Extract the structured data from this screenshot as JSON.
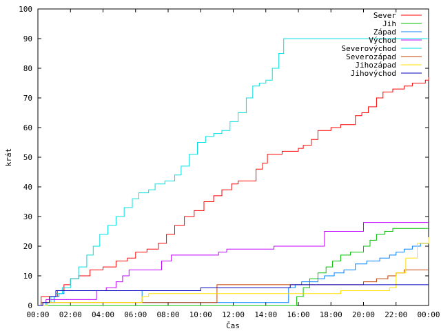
{
  "chart_data": {
    "type": "line",
    "xlabel": "Čas",
    "ylabel": "krát",
    "xlim": [
      0,
      24
    ],
    "ylim": [
      0,
      100
    ],
    "grid": false,
    "legend_position": "top-right",
    "x_tick_labels": [
      "00:00",
      "02:00",
      "04:00",
      "06:00",
      "08:00",
      "10:00",
      "12:00",
      "14:00",
      "16:00",
      "18:00",
      "20:00",
      "22:00",
      "00:00"
    ],
    "y_tick_labels": [
      "0",
      "10",
      "20",
      "30",
      "40",
      "50",
      "60",
      "70",
      "80",
      "90",
      "100"
    ],
    "series": [
      {
        "name": "Sever",
        "color": "#ff0000",
        "points": [
          [
            0,
            0
          ],
          [
            0.2,
            3
          ],
          [
            1.2,
            5
          ],
          [
            1.6,
            7
          ],
          [
            2,
            9
          ],
          [
            2.5,
            10
          ],
          [
            3.2,
            12
          ],
          [
            4,
            13
          ],
          [
            4.8,
            15
          ],
          [
            5.5,
            16
          ],
          [
            6,
            18
          ],
          [
            6.7,
            19
          ],
          [
            7.4,
            21
          ],
          [
            7.9,
            24
          ],
          [
            8.4,
            27
          ],
          [
            9,
            30
          ],
          [
            9.6,
            32
          ],
          [
            10.2,
            35
          ],
          [
            10.8,
            37
          ],
          [
            11.3,
            39
          ],
          [
            11.9,
            41
          ],
          [
            12.3,
            42
          ],
          [
            13,
            42
          ],
          [
            13.4,
            46
          ],
          [
            13.8,
            48
          ],
          [
            14.1,
            51
          ],
          [
            14.8,
            51
          ],
          [
            15,
            52
          ],
          [
            16,
            53
          ],
          [
            16.3,
            54
          ],
          [
            16.8,
            56
          ],
          [
            17.2,
            59
          ],
          [
            18,
            60
          ],
          [
            18.6,
            61
          ],
          [
            19.5,
            64
          ],
          [
            19.9,
            65
          ],
          [
            20.3,
            67
          ],
          [
            20.8,
            70
          ],
          [
            21.2,
            72
          ],
          [
            21.8,
            73
          ],
          [
            22.5,
            74
          ],
          [
            23,
            75
          ],
          [
            23.5,
            75
          ],
          [
            23.8,
            76
          ],
          [
            24,
            77
          ]
        ]
      },
      {
        "name": "Jih",
        "color": "#00c000",
        "points": [
          [
            0,
            0
          ],
          [
            15.5,
            0
          ],
          [
            15.9,
            3
          ],
          [
            16.3,
            6
          ],
          [
            16.7,
            9
          ],
          [
            17.2,
            11
          ],
          [
            17.7,
            13
          ],
          [
            18.1,
            15
          ],
          [
            18.6,
            17
          ],
          [
            19.2,
            18
          ],
          [
            20,
            20
          ],
          [
            20.4,
            22
          ],
          [
            20.8,
            24
          ],
          [
            21.3,
            25
          ],
          [
            21.8,
            26
          ],
          [
            24,
            26
          ]
        ]
      },
      {
        "name": "Západ",
        "color": "#0080ff",
        "points": [
          [
            0,
            0
          ],
          [
            0.4,
            0
          ],
          [
            0.6,
            1
          ],
          [
            1,
            3
          ],
          [
            1.3,
            4
          ],
          [
            1.6,
            5
          ],
          [
            6.3,
            5
          ],
          [
            6.4,
            1
          ],
          [
            15.1,
            1
          ],
          [
            15.4,
            6
          ],
          [
            15.8,
            7
          ],
          [
            16.2,
            8
          ],
          [
            17.2,
            9
          ],
          [
            17.6,
            10
          ],
          [
            18.2,
            11
          ],
          [
            18.8,
            12
          ],
          [
            19.5,
            14
          ],
          [
            20.2,
            15
          ],
          [
            21,
            16
          ],
          [
            21.6,
            17
          ],
          [
            22,
            18
          ],
          [
            22.5,
            19
          ],
          [
            23,
            20
          ],
          [
            23.5,
            21
          ],
          [
            24,
            21
          ]
        ]
      },
      {
        "name": "Východ",
        "color": "#c000ff",
        "points": [
          [
            0,
            0
          ],
          [
            0.3,
            0
          ],
          [
            0.5,
            2
          ],
          [
            3.2,
            2
          ],
          [
            3.6,
            5
          ],
          [
            4.2,
            6
          ],
          [
            4.8,
            8
          ],
          [
            5.2,
            10
          ],
          [
            5.6,
            12
          ],
          [
            7.2,
            12
          ],
          [
            7.6,
            15
          ],
          [
            8.2,
            17
          ],
          [
            10.8,
            17
          ],
          [
            11.1,
            18
          ],
          [
            11.6,
            19
          ],
          [
            14,
            19
          ],
          [
            14.5,
            20
          ],
          [
            17.2,
            20
          ],
          [
            17.6,
            25
          ],
          [
            19.6,
            25
          ],
          [
            20,
            28
          ],
          [
            24,
            28
          ]
        ]
      },
      {
        "name": "Severovýchod",
        "color": "#00e0e0",
        "points": [
          [
            0,
            0
          ],
          [
            0.3,
            0
          ],
          [
            0.5,
            1
          ],
          [
            0.8,
            3
          ],
          [
            1.1,
            4
          ],
          [
            1.5,
            6
          ],
          [
            2,
            9
          ],
          [
            2.5,
            13
          ],
          [
            3,
            17
          ],
          [
            3.4,
            20
          ],
          [
            3.8,
            24
          ],
          [
            4.3,
            27
          ],
          [
            4.8,
            30
          ],
          [
            5.3,
            33
          ],
          [
            5.8,
            36
          ],
          [
            6.2,
            38
          ],
          [
            6.8,
            39
          ],
          [
            7.2,
            41
          ],
          [
            7.8,
            42
          ],
          [
            8.4,
            44
          ],
          [
            8.8,
            47
          ],
          [
            9.3,
            51
          ],
          [
            9.8,
            55
          ],
          [
            10.3,
            57
          ],
          [
            10.8,
            58
          ],
          [
            11.3,
            59
          ],
          [
            11.8,
            62
          ],
          [
            12.3,
            65
          ],
          [
            12.8,
            70
          ],
          [
            13.2,
            74
          ],
          [
            13.6,
            75
          ],
          [
            14,
            76
          ],
          [
            14.4,
            80
          ],
          [
            14.8,
            85
          ],
          [
            15.1,
            90
          ],
          [
            24,
            90
          ]
        ]
      },
      {
        "name": "Severozápad",
        "color": "#c04000",
        "points": [
          [
            0,
            0
          ],
          [
            0.2,
            1
          ],
          [
            10.8,
            1
          ],
          [
            11,
            7
          ],
          [
            19.8,
            7
          ],
          [
            20,
            8
          ],
          [
            20.8,
            9
          ],
          [
            21.5,
            10
          ],
          [
            22,
            11
          ],
          [
            22.5,
            12
          ],
          [
            24,
            12
          ]
        ]
      },
      {
        "name": "Jihozápad",
        "color": "#ffe000",
        "points": [
          [
            0,
            0
          ],
          [
            0.6,
            1
          ],
          [
            6.2,
            1
          ],
          [
            6.4,
            3
          ],
          [
            6.8,
            4
          ],
          [
            14.3,
            4
          ],
          [
            16,
            4
          ],
          [
            18.6,
            5
          ],
          [
            21.6,
            6
          ],
          [
            22,
            11
          ],
          [
            22.6,
            16
          ],
          [
            23.3,
            21
          ],
          [
            24,
            23
          ]
        ]
      },
      {
        "name": "Jihovýchod",
        "color": "#0000c0",
        "points": [
          [
            0,
            0
          ],
          [
            0.3,
            1
          ],
          [
            0.7,
            3
          ],
          [
            1.1,
            5
          ],
          [
            9.6,
            5
          ],
          [
            10,
            6
          ],
          [
            15.2,
            6
          ],
          [
            15.5,
            7
          ],
          [
            24,
            7
          ]
        ]
      }
    ]
  }
}
